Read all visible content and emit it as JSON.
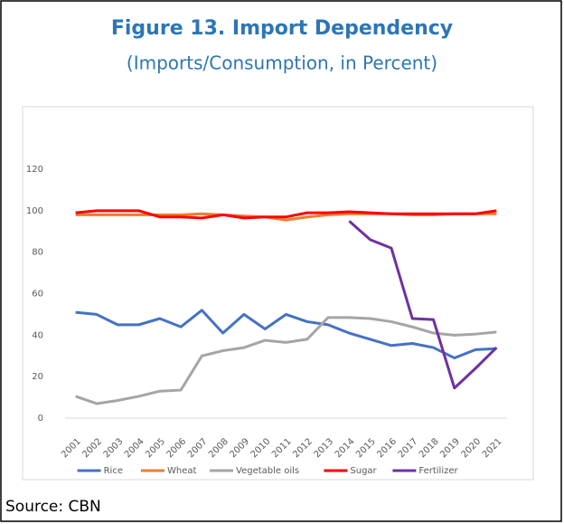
{
  "chart_data": {
    "type": "line",
    "title": "Figure 13. Import Dependency",
    "subtitle": "(Imports/Consumption, in Percent)",
    "source": "Source: CBN",
    "categories": [
      "2001",
      "2002",
      "2003",
      "2004",
      "2005",
      "2006",
      "2007",
      "2008",
      "2009",
      "2010",
      "2011",
      "2012",
      "2013",
      "2014",
      "2015",
      "2016",
      "2017",
      "2018",
      "2019",
      "2020",
      "2021"
    ],
    "series": [
      {
        "name": "Rice",
        "color": "#4472c4",
        "values": [
          51,
          50,
          45,
          45,
          48,
          44,
          52,
          41,
          50,
          43,
          50,
          46.5,
          45,
          41,
          38,
          35,
          36,
          34,
          29,
          33,
          33.5
        ]
      },
      {
        "name": "Wheat",
        "color": "#ed7d31",
        "values": [
          98,
          98,
          98,
          98,
          98,
          98,
          98.5,
          98,
          97.5,
          97,
          95.5,
          97,
          98,
          98.5,
          98.5,
          98.5,
          98,
          98,
          98.5,
          98.5,
          98.5
        ]
      },
      {
        "name": "Vegetable oils",
        "color": "#a5a5a5",
        "values": [
          10.5,
          7,
          8.5,
          10.5,
          13,
          13.5,
          30,
          32.5,
          34,
          37.5,
          36.5,
          38,
          48.5,
          48.5,
          48,
          46.5,
          44,
          41,
          40,
          40.5,
          41.5
        ]
      },
      {
        "name": "Sugar",
        "color": "#ff0000",
        "values": [
          99,
          100,
          100,
          100,
          97,
          97,
          96.5,
          98,
          96.5,
          97,
          97,
          99,
          99,
          99.5,
          99,
          98.5,
          98.5,
          98.5,
          98.5,
          98.5,
          100
        ]
      },
      {
        "name": "Fertilizer",
        "color": "#7030a0",
        "values": [
          null,
          null,
          null,
          null,
          null,
          null,
          null,
          null,
          null,
          null,
          null,
          null,
          null,
          95,
          86,
          82,
          48,
          47.5,
          14.5,
          24,
          34
        ]
      }
    ],
    "ylim": [
      0,
      120
    ],
    "yticks": [
      0,
      20,
      40,
      60,
      80,
      100,
      120
    ],
    "grid": false,
    "legend": "bottom"
  }
}
